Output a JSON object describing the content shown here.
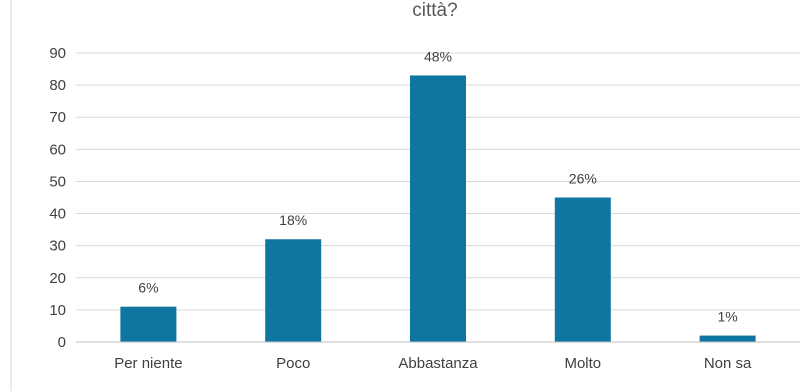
{
  "chart_data": {
    "type": "bar",
    "title": "città?",
    "xlabel": "",
    "ylabel": "",
    "categories": [
      "Per niente",
      "Poco",
      "Abbastanza",
      "Molto",
      "Non sa"
    ],
    "values": [
      11,
      32,
      83,
      45,
      2
    ],
    "data_labels": [
      "6%",
      "18%",
      "48%",
      "26%",
      "1%"
    ],
    "ylim": [
      0,
      90
    ],
    "yticks": [
      0,
      10,
      20,
      30,
      40,
      50,
      60,
      70,
      80,
      90
    ],
    "grid": true,
    "legend": "none",
    "colors": {
      "bar": "#0e76a0",
      "grid": "#d9d9d9",
      "axis": "#bfbfbf",
      "text": "#404040"
    }
  }
}
